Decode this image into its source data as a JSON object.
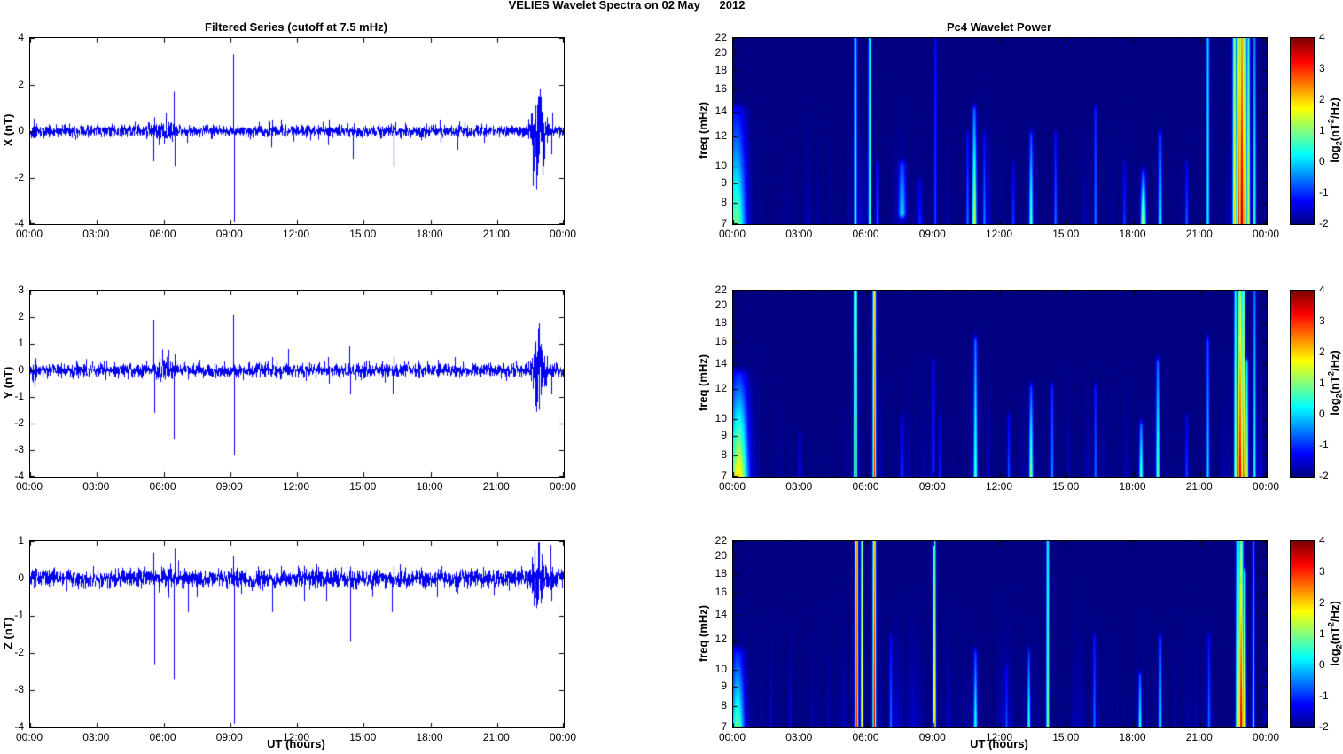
{
  "title": "VELIES Wavelet Spectra on 02 May      2012",
  "colors": {
    "line": "#0000ee",
    "background": "#ffffff",
    "heatmap_background": "#000080",
    "axis": "#000000"
  },
  "chart_data": {
    "x_axis": {
      "label": "UT (hours)",
      "tick_hours": [
        0,
        3,
        6,
        9,
        12,
        15,
        18,
        21,
        24
      ],
      "tick_labels": [
        "00:00",
        "03:00",
        "06:00",
        "09:00",
        "12:00",
        "15:00",
        "18:00",
        "21:00",
        "00:00"
      ]
    },
    "left_plots": [
      {
        "type": "line",
        "title": "Filtered Series (cutoff at 7.5 mHz)",
        "ylabel": "X (nT)",
        "xlabel": "",
        "ylim": [
          -4,
          4
        ],
        "yticks": [
          4,
          2,
          0,
          -2,
          -4
        ],
        "noise_amp": 0.13,
        "spikes": [
          [
            5.55,
            -1.3
          ],
          [
            5.6,
            0.6
          ],
          [
            6.45,
            1.7
          ],
          [
            6.5,
            -1.5
          ],
          [
            7.05,
            -0.5
          ],
          [
            9.12,
            3.3
          ],
          [
            9.16,
            -3.9
          ],
          [
            10.85,
            -0.7
          ],
          [
            10.9,
            0.5
          ],
          [
            11.3,
            0.5
          ],
          [
            12.6,
            -0.4
          ],
          [
            13.4,
            -0.6
          ],
          [
            13.45,
            0.5
          ],
          [
            14.5,
            -1.2
          ],
          [
            16.35,
            -1.5
          ],
          [
            17.6,
            -0.4
          ],
          [
            18.4,
            0.5
          ],
          [
            18.45,
            -0.5
          ],
          [
            19.2,
            -0.8
          ],
          [
            20.4,
            -0.5
          ],
          [
            22.75,
            -2.5
          ],
          [
            22.9,
            1.5
          ],
          [
            23.05,
            -1.9
          ],
          [
            23.45,
            -1.0
          ],
          [
            23.5,
            0.8
          ]
        ],
        "bursts": [
          [
            0,
            0.4,
            0.3
          ],
          [
            5.3,
            6.8,
            0.28
          ],
          [
            22.4,
            23.35,
            1.0
          ]
        ]
      },
      {
        "type": "line",
        "title": "",
        "ylabel": "Y (nT)",
        "xlabel": "",
        "ylim": [
          -4,
          3
        ],
        "yticks": [
          3,
          2,
          1,
          0,
          -1,
          -2,
          -3,
          -4
        ],
        "noise_amp": 0.13,
        "spikes": [
          [
            5.55,
            1.9
          ],
          [
            5.6,
            -1.6
          ],
          [
            6.45,
            -2.6
          ],
          [
            6.5,
            0.6
          ],
          [
            7.6,
            0.4
          ],
          [
            9.12,
            2.1
          ],
          [
            9.16,
            -3.2
          ],
          [
            10.9,
            0.5
          ],
          [
            11.6,
            0.8
          ],
          [
            12.4,
            -0.4
          ],
          [
            13.4,
            0.5
          ],
          [
            13.45,
            -0.5
          ],
          [
            14.35,
            0.9
          ],
          [
            14.4,
            -0.9
          ],
          [
            16.3,
            -0.9
          ],
          [
            16.35,
            0.5
          ],
          [
            18.35,
            0.4
          ],
          [
            19.1,
            0.5
          ],
          [
            21.4,
            -0.4
          ],
          [
            22.8,
            -1.2
          ],
          [
            22.95,
            1.0
          ],
          [
            23.45,
            -0.9
          ]
        ],
        "bursts": [
          [
            0,
            0.4,
            0.3
          ],
          [
            5.3,
            6.8,
            0.28
          ],
          [
            22.4,
            23.3,
            0.75
          ]
        ]
      },
      {
        "type": "line",
        "title": "",
        "ylabel": "Z (nT)",
        "xlabel": "UT (hours)",
        "ylim": [
          -4,
          1
        ],
        "yticks": [
          1,
          0,
          -1,
          -2,
          -3,
          -4
        ],
        "noise_amp": 0.13,
        "spikes": [
          [
            5.55,
            0.7
          ],
          [
            5.6,
            -2.3
          ],
          [
            6.45,
            -2.7
          ],
          [
            6.5,
            0.8
          ],
          [
            7.1,
            -0.9
          ],
          [
            7.5,
            -0.5
          ],
          [
            9.12,
            0.6
          ],
          [
            9.16,
            -3.9
          ],
          [
            10.9,
            -0.9
          ],
          [
            12.3,
            -0.6
          ],
          [
            13.3,
            -0.6
          ],
          [
            14.4,
            -1.7
          ],
          [
            16.25,
            -0.9
          ],
          [
            18.3,
            -0.5
          ],
          [
            19.2,
            -0.4
          ],
          [
            22.8,
            -0.7
          ],
          [
            23.4,
            0.9
          ],
          [
            23.45,
            -0.6
          ]
        ],
        "bursts": [
          [
            0,
            0.35,
            0.2
          ],
          [
            5.3,
            6.8,
            0.22
          ],
          [
            22.4,
            23.25,
            0.5
          ]
        ]
      }
    ],
    "right_plots": [
      {
        "type": "heatmap",
        "title": "Pc4 Wavelet Power",
        "ylabel": "freq (mHz)",
        "xlabel": "",
        "flim": [
          7,
          22
        ],
        "yticks": [
          22,
          20,
          18,
          16,
          14,
          12,
          10,
          9,
          8,
          7
        ],
        "features": [
          [
            0.15,
            7,
            14,
            1.0,
            -1.2,
            0.3
          ],
          [
            5.5,
            7,
            22,
            0.6,
            0.2,
            0.05
          ],
          [
            6.15,
            7,
            22,
            0.7,
            0.3,
            0.05
          ],
          [
            6.5,
            7,
            10,
            -0.6,
            -1.2,
            0.05
          ],
          [
            7.6,
            7.5,
            10,
            0.1,
            -0.8,
            0.12
          ],
          [
            8.4,
            7,
            9,
            -1.0,
            -1.5,
            0.08
          ],
          [
            9.1,
            7,
            22,
            -0.8,
            -1.2,
            0.05
          ],
          [
            10.55,
            7,
            12,
            -0.5,
            -1.2,
            0.05
          ],
          [
            10.85,
            7,
            14,
            1.6,
            -0.6,
            0.07
          ],
          [
            11.3,
            7,
            12,
            -0.4,
            -1.2,
            0.05
          ],
          [
            12.6,
            7,
            10,
            -0.8,
            -1.4,
            0.05
          ],
          [
            13.4,
            7,
            12,
            0.9,
            -0.8,
            0.06
          ],
          [
            14.5,
            7,
            12,
            -0.5,
            -1.2,
            0.05
          ],
          [
            16.3,
            7,
            14,
            -0.4,
            -1.0,
            0.05
          ],
          [
            17.6,
            7,
            10,
            -0.8,
            -1.4,
            0.05
          ],
          [
            18.45,
            7,
            9.5,
            1.9,
            -0.8,
            0.08
          ],
          [
            19.2,
            7,
            12,
            0.6,
            -0.8,
            0.06
          ],
          [
            20.4,
            7,
            10,
            -0.6,
            -1.3,
            0.05
          ],
          [
            21.35,
            7,
            22,
            0.4,
            0.0,
            0.05
          ],
          [
            22.55,
            7,
            22,
            2.0,
            1.0,
            0.06
          ],
          [
            22.72,
            7,
            22,
            3.3,
            1.6,
            0.07
          ],
          [
            22.88,
            7,
            22,
            3.9,
            2.4,
            0.08
          ],
          [
            23.02,
            7,
            22,
            3.0,
            1.4,
            0.06
          ],
          [
            23.18,
            7,
            22,
            1.6,
            0.5,
            0.05
          ],
          [
            23.45,
            7,
            22,
            0.6,
            -0.4,
            0.05
          ]
        ]
      },
      {
        "type": "heatmap",
        "title": "",
        "ylabel": "freq (mHz)",
        "xlabel": "",
        "flim": [
          7,
          22
        ],
        "yticks": [
          22,
          20,
          18,
          16,
          14,
          12,
          10,
          9,
          8,
          7
        ],
        "features": [
          [
            0.25,
            7,
            13,
            2.0,
            -1.0,
            0.3
          ],
          [
            3.0,
            7,
            9,
            -1.2,
            -1.6,
            0.06
          ],
          [
            5.5,
            7,
            22,
            2.9,
            2.3,
            0.05
          ],
          [
            6.35,
            7,
            22,
            3.1,
            2.0,
            0.05
          ],
          [
            7.6,
            7,
            10,
            -0.8,
            -1.4,
            0.06
          ],
          [
            9.0,
            7,
            14,
            -0.8,
            -1.2,
            0.05
          ],
          [
            9.3,
            7,
            10,
            -1.0,
            -1.5,
            0.05
          ],
          [
            10.9,
            7,
            16,
            0.9,
            -0.6,
            0.06
          ],
          [
            12.4,
            7,
            10,
            -0.7,
            -1.3,
            0.05
          ],
          [
            13.4,
            7,
            12,
            1.3,
            -0.8,
            0.06
          ],
          [
            14.35,
            7,
            12,
            -0.3,
            -1.0,
            0.05
          ],
          [
            16.3,
            7,
            12,
            -0.5,
            -1.1,
            0.05
          ],
          [
            18.35,
            7,
            9.5,
            0.9,
            -0.5,
            0.06
          ],
          [
            19.1,
            7,
            14,
            0.9,
            -0.6,
            0.06
          ],
          [
            20.4,
            7,
            10,
            -0.8,
            -1.4,
            0.05
          ],
          [
            21.35,
            7,
            16,
            0.1,
            -0.8,
            0.05
          ],
          [
            22.6,
            7,
            22,
            1.6,
            0.4,
            0.05
          ],
          [
            22.8,
            7,
            22,
            3.6,
            1.3,
            0.08
          ],
          [
            22.95,
            7,
            22,
            2.9,
            1.0,
            0.06
          ],
          [
            23.1,
            7,
            14,
            1.6,
            0.1,
            0.05
          ],
          [
            23.45,
            7,
            22,
            0.4,
            -0.5,
            0.05
          ]
        ]
      },
      {
        "type": "heatmap",
        "title": "",
        "ylabel": "freq (mHz)",
        "xlabel": "UT (hours)",
        "flim": [
          7,
          22
        ],
        "yticks": [
          22,
          20,
          18,
          16,
          14,
          12,
          10,
          9,
          8,
          7
        ],
        "features": [
          [
            0.2,
            7,
            11,
            0.9,
            -1.0,
            0.22
          ],
          [
            5.55,
            7,
            22,
            3.3,
            2.5,
            0.05
          ],
          [
            5.8,
            7,
            22,
            1.9,
            1.0,
            0.04
          ],
          [
            6.35,
            7,
            22,
            3.5,
            2.3,
            0.05
          ],
          [
            7.1,
            7,
            12,
            -0.5,
            -1.2,
            0.05
          ],
          [
            9.05,
            7,
            22,
            2.3,
            0.8,
            0.05
          ],
          [
            10.9,
            7,
            11,
            0.6,
            -0.9,
            0.06
          ],
          [
            12.3,
            7,
            10,
            -0.7,
            -1.3,
            0.05
          ],
          [
            13.3,
            7,
            11,
            0.7,
            -0.9,
            0.05
          ],
          [
            14.15,
            7,
            22,
            1.1,
            0.3,
            0.05
          ],
          [
            16.25,
            7,
            12,
            -0.5,
            -1.1,
            0.05
          ],
          [
            18.3,
            7,
            9.5,
            0.6,
            -0.6,
            0.05
          ],
          [
            19.2,
            7,
            12,
            0.7,
            -0.7,
            0.05
          ],
          [
            21.4,
            7,
            12,
            -0.5,
            -1.2,
            0.05
          ],
          [
            22.7,
            7,
            22,
            2.6,
            0.6,
            0.06
          ],
          [
            22.85,
            7,
            22,
            3.7,
            1.1,
            0.07
          ],
          [
            23.0,
            7,
            18,
            2.1,
            0.4,
            0.05
          ],
          [
            23.4,
            7,
            22,
            0.4,
            -0.5,
            0.04
          ]
        ]
      }
    ],
    "colorbar": {
      "lim": [
        -2,
        4
      ],
      "ticks": [
        4,
        3,
        2,
        1,
        0,
        -1,
        -2
      ],
      "label_parts": [
        "log",
        "2",
        "(nT",
        "2",
        "/Hz)"
      ]
    }
  }
}
